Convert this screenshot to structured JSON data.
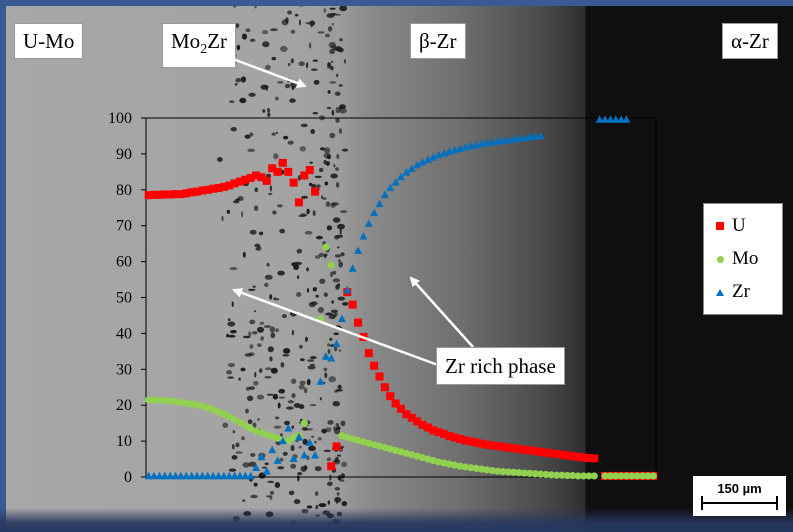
{
  "phase_labels": {
    "u_mo": "U-Mo",
    "mo2zr_base": "Mo",
    "mo2zr_sub": "2",
    "mo2zr_tail": "Zr",
    "beta_zr": "β-Zr",
    "alpha_zr": "α-Zr"
  },
  "callout": "Zr rich phase",
  "scale_bar": "150 µm",
  "colors": {
    "U": "#ff0000",
    "Mo": "#92d050",
    "Zr": "#0070c0"
  },
  "chart_data": {
    "type": "scatter",
    "title": "",
    "xlabel": "",
    "ylabel": "",
    "ylim": [
      0,
      100
    ],
    "yticks": [
      "0",
      "10",
      "20",
      "30",
      "40",
      "50",
      "60",
      "70",
      "80",
      "90",
      "100"
    ],
    "x_axis_labels_shown": false,
    "grid": false,
    "legend_position": "right",
    "series": [
      {
        "name": "U",
        "marker": "square",
        "x": [
          1,
          2,
          3,
          4,
          5,
          6,
          7,
          8,
          9,
          10,
          11,
          12,
          13,
          14,
          15,
          16,
          17,
          18,
          19,
          20,
          21,
          22,
          23,
          24,
          25,
          26,
          27,
          28,
          29,
          30,
          31,
          32,
          33,
          34,
          35,
          36,
          37,
          38,
          39,
          40,
          41,
          42,
          43,
          44,
          45,
          46,
          47,
          48,
          49,
          50,
          51,
          52,
          53,
          54,
          55,
          56,
          57,
          58,
          59,
          60,
          61,
          62,
          63,
          64,
          65,
          66,
          67,
          68,
          69,
          70,
          71,
          72,
          73,
          74,
          75,
          76,
          77,
          78,
          79,
          80,
          81,
          82,
          83,
          84,
          85,
          86,
          87,
          88,
          89,
          90,
          91,
          92,
          93,
          94,
          95
        ],
        "values": [
          78.5,
          78.6,
          78.6,
          78.7,
          78.7,
          78.8,
          78.8,
          79.0,
          79.3,
          79.5,
          79.8,
          80.0,
          80.3,
          80.5,
          80.8,
          81.2,
          81.8,
          82.3,
          82.8,
          83.3,
          84.0,
          83.5,
          82.5,
          86.0,
          85.0,
          87.5,
          85.0,
          82.0,
          76.5,
          84.0,
          85.5,
          79.5,
          null,
          null,
          3.0,
          8.5,
          null,
          51.5,
          48.0,
          43.0,
          39.0,
          34.5,
          31.0,
          28.0,
          25.0,
          22.5,
          20.5,
          19.0,
          17.5,
          16.5,
          15.5,
          14.5,
          13.8,
          13.0,
          12.5,
          12.0,
          11.4,
          11.0,
          10.6,
          10.2,
          9.9,
          9.6,
          9.3,
          9.0,
          8.8,
          8.6,
          8.4,
          8.2,
          8.0,
          7.8,
          7.6,
          7.4,
          7.2,
          7.0,
          6.8,
          6.6,
          6.4,
          6.2,
          6.0,
          5.8,
          5.6,
          5.4,
          5.3,
          5.2,
          null,
          0.3,
          0.3,
          0.3,
          0.3,
          0.3,
          0.3,
          0.3,
          0.3,
          0.3,
          0.3
        ]
      },
      {
        "name": "Mo",
        "marker": "circle",
        "x": [
          1,
          2,
          3,
          4,
          5,
          6,
          7,
          8,
          9,
          10,
          11,
          12,
          13,
          14,
          15,
          16,
          17,
          18,
          19,
          20,
          21,
          22,
          23,
          24,
          25,
          26,
          27,
          28,
          29,
          30,
          31,
          32,
          33,
          34,
          35,
          36,
          37,
          38,
          39,
          40,
          41,
          42,
          43,
          44,
          45,
          46,
          47,
          48,
          49,
          50,
          51,
          52,
          53,
          54,
          55,
          56,
          57,
          58,
          59,
          60,
          61,
          62,
          63,
          64,
          65,
          66,
          67,
          68,
          69,
          70,
          71,
          72,
          73,
          74,
          75,
          76,
          77,
          78,
          79,
          80,
          81,
          82,
          83,
          84,
          85,
          86,
          87,
          88,
          89,
          90,
          91,
          92,
          93,
          94,
          95
        ],
        "values": [
          21.5,
          21.4,
          21.4,
          21.3,
          21.2,
          21.0,
          20.8,
          20.5,
          20.3,
          20.0,
          19.8,
          19.3,
          18.8,
          18.2,
          17.5,
          16.8,
          16.0,
          15.2,
          14.3,
          13.5,
          12.8,
          12.3,
          11.8,
          11.3,
          10.8,
          10.4,
          10.0,
          11.0,
          11.5,
          15.0,
          null,
          null,
          44.0,
          64.0,
          59.0,
          null,
          11.5,
          11.0,
          10.6,
          10.2,
          9.8,
          9.4,
          9.0,
          8.6,
          8.2,
          7.8,
          7.4,
          7.0,
          6.6,
          6.2,
          5.8,
          5.4,
          5.0,
          4.6,
          4.2,
          3.9,
          3.6,
          3.3,
          3.0,
          2.8,
          2.6,
          2.4,
          2.2,
          2.0,
          1.8,
          1.6,
          1.5,
          1.4,
          1.3,
          1.2,
          1.1,
          1.0,
          0.9,
          0.8,
          0.7,
          0.6,
          0.5,
          0.5,
          0.4,
          0.4,
          0.3,
          0.3,
          0.3,
          0.3,
          null,
          0.3,
          0.3,
          0.3,
          0.3,
          0.3,
          0.3,
          0.3,
          0.3,
          0.3,
          0.3
        ]
      },
      {
        "name": "Zr",
        "marker": "triangle",
        "x": [
          1,
          2,
          3,
          4,
          5,
          6,
          7,
          8,
          9,
          10,
          11,
          12,
          13,
          14,
          15,
          16,
          17,
          18,
          19,
          20,
          21,
          22,
          23,
          24,
          25,
          26,
          27,
          28,
          29,
          30,
          31,
          32,
          33,
          34,
          35,
          36,
          37,
          38,
          39,
          40,
          41,
          42,
          43,
          44,
          45,
          46,
          47,
          48,
          49,
          50,
          51,
          52,
          53,
          54,
          55,
          56,
          57,
          58,
          59,
          60,
          61,
          62,
          63,
          64,
          65,
          66,
          67,
          68,
          69,
          70,
          71,
          72,
          73,
          74,
          75,
          76,
          77,
          78,
          79,
          80,
          81,
          82,
          83,
          84,
          85,
          86,
          87,
          88,
          89,
          90,
          91,
          92,
          93,
          94,
          95
        ],
        "values": [
          0.2,
          0.2,
          0.2,
          0.2,
          0.2,
          0.2,
          0.2,
          0.2,
          0.2,
          0.2,
          0.2,
          0.2,
          0.2,
          0.2,
          0.2,
          0.2,
          0.2,
          0.2,
          0.2,
          0.2,
          2.5,
          5.5,
          1.5,
          7.5,
          4.5,
          10.0,
          13.5,
          5.0,
          11.0,
          6.0,
          9.5,
          6.0,
          26.5,
          33.5,
          33.0,
          37.0,
          44.0,
          52.0,
          58.0,
          63.0,
          67.0,
          70.5,
          73.5,
          76.0,
          78.5,
          80.5,
          82.0,
          83.5,
          84.8,
          85.8,
          86.8,
          87.6,
          88.3,
          89.0,
          89.6,
          90.1,
          90.6,
          91.0,
          91.4,
          91.8,
          92.1,
          92.4,
          92.7,
          93.0,
          93.2,
          93.4,
          93.6,
          93.8,
          94.0,
          94.2,
          94.4,
          94.6,
          94.8,
          95.0,
          null,
          null,
          null,
          null,
          null,
          null,
          null,
          null,
          null,
          null,
          99.5,
          99.5,
          99.5,
          99.5,
          99.5,
          99.5,
          null,
          null,
          null,
          null,
          null
        ]
      }
    ]
  }
}
